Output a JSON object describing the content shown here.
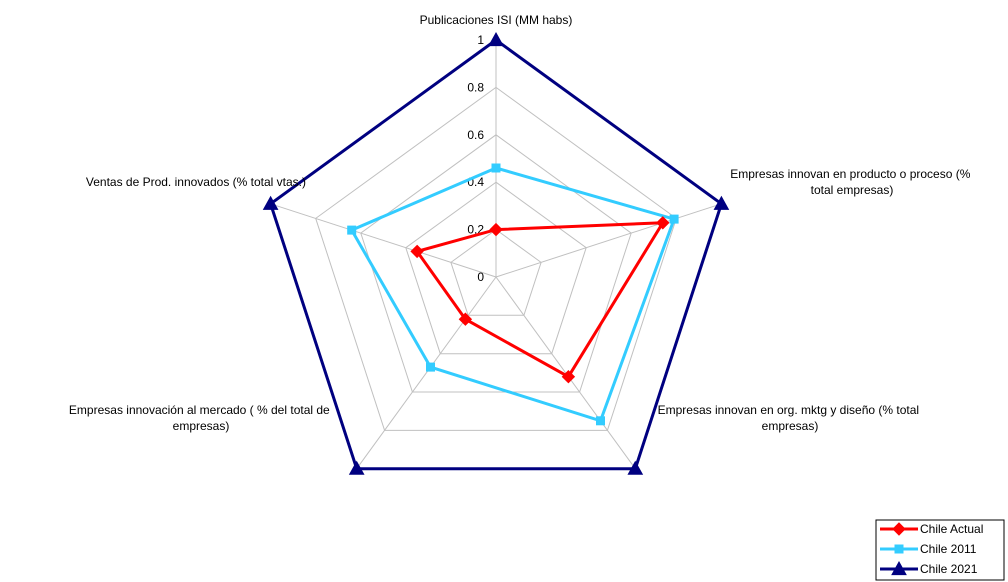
{
  "chart_data": {
    "type": "radar",
    "axes": [
      {
        "label_lines": [
          "Publicaciones ISI (MM habs)"
        ]
      },
      {
        "label_lines": [
          "Empresas innovan en producto o proceso (%",
          "total empresas)"
        ]
      },
      {
        "label_lines": [
          "Empresas innovan en org. mktg y diseño (% total",
          "empresas)"
        ]
      },
      {
        "label_lines": [
          "Empresas innovación al mercado ( % del total de",
          "empresas)"
        ]
      },
      {
        "label_lines": [
          "Ventas de Prod. innovados (% total vtas.)"
        ]
      }
    ],
    "r_range": [
      0,
      1
    ],
    "r_ticks": [
      "0",
      "0.2",
      "0.4",
      "0.6",
      "0.8",
      "1"
    ],
    "grid": true,
    "legend_position": "bottom-right",
    "series": [
      {
        "name": "Chile Actual",
        "color": "#ff0000",
        "marker": "diamond",
        "values": [
          0.2,
          0.74,
          0.52,
          0.22,
          0.35
        ]
      },
      {
        "name": "Chile 2011",
        "color": "#33ccff",
        "marker": "square",
        "values": [
          0.46,
          0.79,
          0.75,
          0.47,
          0.64
        ]
      },
      {
        "name": "Chile 2021",
        "color": "#000080",
        "marker": "triangle",
        "values": [
          1,
          1,
          1,
          1,
          1
        ]
      }
    ]
  }
}
